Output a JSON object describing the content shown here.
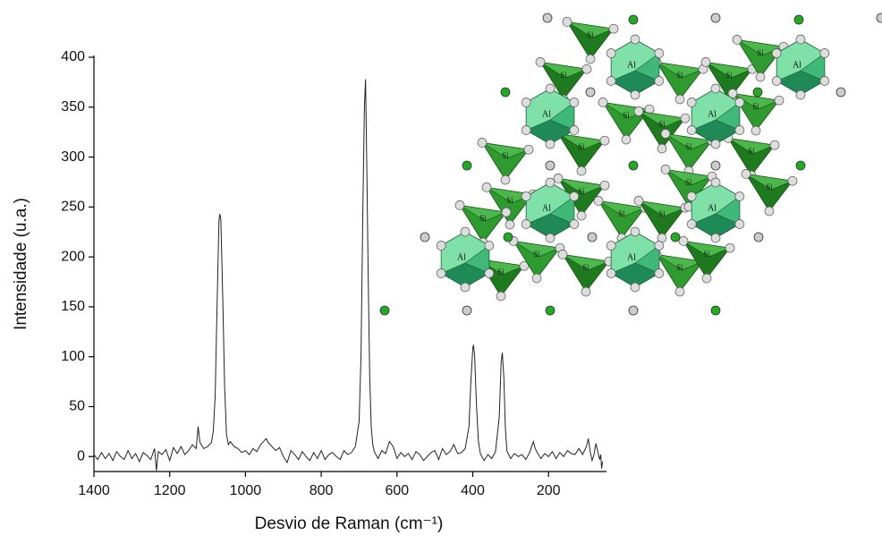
{
  "chart_data": {
    "type": "line",
    "xlabel": "Desvio de Raman (cm⁻¹)",
    "ylabel": "Intensidade (u.a.)",
    "annotations": [
      "Al",
      "Si"
    ],
    "color": "#222222",
    "xlim": [
      1400,
      47
    ],
    "xticks": [
      1400,
      1200,
      1000,
      800,
      600,
      400,
      200
    ],
    "ylim": [
      -15,
      400
    ],
    "yticks": [
      0,
      50,
      100,
      150,
      200,
      250,
      300,
      350,
      400
    ],
    "x": [
      1400,
      1390,
      1380,
      1370,
      1360,
      1350,
      1340,
      1330,
      1320,
      1310,
      1300,
      1290,
      1280,
      1270,
      1260,
      1250,
      1240,
      1235,
      1230,
      1220,
      1210,
      1200,
      1190,
      1180,
      1170,
      1160,
      1150,
      1140,
      1130,
      1125,
      1120,
      1110,
      1100,
      1090,
      1085,
      1080,
      1075,
      1070,
      1068,
      1065,
      1060,
      1055,
      1050,
      1045,
      1040,
      1030,
      1020,
      1010,
      1000,
      990,
      980,
      970,
      960,
      950,
      945,
      940,
      930,
      920,
      910,
      900,
      890,
      880,
      870,
      860,
      850,
      840,
      830,
      820,
      810,
      800,
      790,
      780,
      770,
      760,
      750,
      740,
      730,
      720,
      710,
      700,
      695,
      690,
      686,
      683,
      680,
      676,
      672,
      668,
      664,
      660,
      650,
      640,
      630,
      620,
      610,
      600,
      590,
      580,
      570,
      560,
      550,
      540,
      530,
      520,
      510,
      500,
      490,
      480,
      470,
      460,
      450,
      440,
      430,
      420,
      410,
      405,
      400,
      398,
      395,
      390,
      385,
      380,
      370,
      360,
      350,
      340,
      330,
      325,
      322,
      318,
      314,
      310,
      300,
      290,
      280,
      270,
      260,
      250,
      240,
      235,
      230,
      220,
      210,
      200,
      190,
      180,
      170,
      160,
      150,
      140,
      130,
      120,
      110,
      100,
      95,
      90,
      85,
      80,
      75,
      70,
      65,
      62,
      60,
      57
    ],
    "values": [
      2,
      -3,
      4,
      -2,
      3,
      -4,
      5,
      0,
      -3,
      6,
      -2,
      3,
      -5,
      4,
      1,
      -3,
      8,
      -14,
      5,
      2,
      7,
      -4,
      9,
      3,
      10,
      2,
      6,
      12,
      8,
      30,
      14,
      8,
      10,
      14,
      25,
      60,
      150,
      235,
      243,
      238,
      160,
      70,
      22,
      12,
      15,
      10,
      8,
      4,
      6,
      2,
      8,
      5,
      12,
      16,
      18,
      14,
      10,
      6,
      9,
      0,
      -6,
      6,
      2,
      -3,
      5,
      0,
      -4,
      4,
      -2,
      6,
      -3,
      2,
      4,
      0,
      -3,
      6,
      2,
      4,
      10,
      35,
      100,
      250,
      350,
      378,
      300,
      180,
      80,
      30,
      12,
      5,
      -2,
      6,
      3,
      15,
      10,
      -2,
      4,
      0,
      3,
      -3,
      5,
      2,
      -4,
      0,
      4,
      6,
      -3,
      8,
      2,
      5,
      12,
      3,
      4,
      8,
      30,
      75,
      108,
      112,
      100,
      50,
      15,
      3,
      -4,
      2,
      -2,
      5,
      40,
      95,
      104,
      80,
      30,
      6,
      -2,
      3,
      0,
      2,
      -3,
      4,
      15,
      8,
      4,
      -2,
      3,
      0,
      5,
      -2,
      4,
      0,
      6,
      3,
      2,
      8,
      2,
      10,
      18,
      5,
      -4,
      2,
      13,
      5,
      -3,
      2,
      -12,
      -5
    ]
  }
}
